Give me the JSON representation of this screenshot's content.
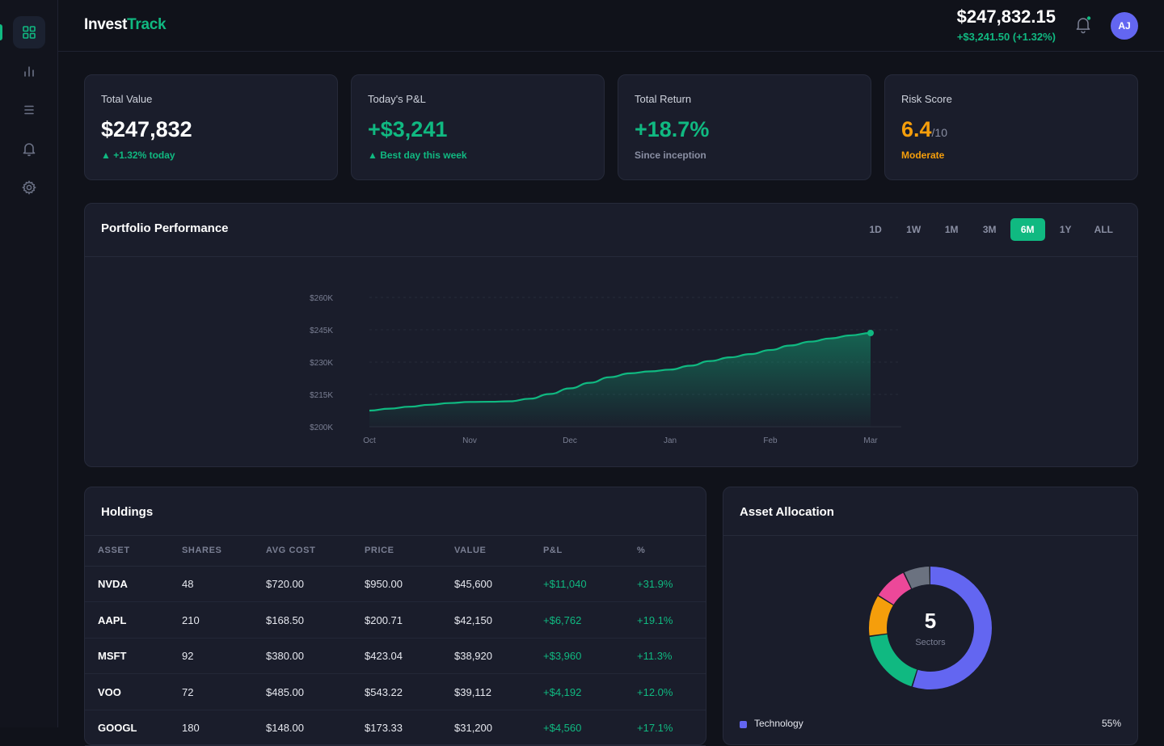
{
  "app": {
    "logo_part1": "Invest",
    "logo_part2": "Track",
    "avatar_initials": "AJ"
  },
  "header": {
    "total_value": "$247,832.15",
    "total_change": "+$3,241.50 (+1.32%)"
  },
  "sidebar": {
    "items": [
      {
        "icon": "grid-icon",
        "active": true
      },
      {
        "icon": "bar-chart-icon",
        "active": false
      },
      {
        "icon": "list-icon",
        "active": false
      },
      {
        "icon": "bell-icon",
        "active": false
      },
      {
        "icon": "gear-icon",
        "active": false
      }
    ]
  },
  "stats": [
    {
      "label": "Total Value",
      "value": "$247,832",
      "sub": "▲ +1.32% today"
    },
    {
      "label": "Today's P&L",
      "value": "+$3,241",
      "sub": "▲ Best day this week"
    },
    {
      "label": "Total Return",
      "value": "+18.7%",
      "sub": "Since inception"
    },
    {
      "label": "Risk Score",
      "value": "6.4",
      "value_suffix": "/10",
      "sub": "Moderate"
    }
  ],
  "performance": {
    "title": "Portfolio Performance",
    "ranges": [
      "1D",
      "1W",
      "1M",
      "3M",
      "6M",
      "1Y",
      "ALL"
    ],
    "active_range": "6M"
  },
  "chart_data": {
    "type": "area",
    "title": "",
    "xlabel": "",
    "ylabel": "",
    "x_ticks": [
      "Oct",
      "Nov",
      "Dec",
      "Jan",
      "Feb",
      "Mar"
    ],
    "y_ticks": [
      "$200K",
      "$215K",
      "$230K",
      "$245K",
      "$260K"
    ],
    "ylim": [
      200000,
      260000
    ],
    "grid": true,
    "color": "#10b981",
    "series": [
      {
        "x": [
          0,
          0.2,
          0.4,
          0.6,
          0.8,
          1.0,
          1.2,
          1.4,
          1.6,
          1.8,
          2.0,
          2.2,
          2.4,
          2.6,
          2.8,
          3.0,
          3.2,
          3.4,
          3.6,
          3.8,
          4.0,
          4.2,
          4.4,
          4.6,
          4.8,
          5.0
        ],
        "values": [
          207500,
          208400,
          209300,
          210200,
          211000,
          211500,
          211600,
          211800,
          213000,
          215200,
          217800,
          220400,
          223000,
          224800,
          225700,
          226500,
          228300,
          230500,
          232200,
          233700,
          235600,
          237700,
          239500,
          241000,
          242400,
          243500
        ]
      }
    ]
  },
  "holdings": {
    "title": "Holdings",
    "columns": [
      "ASSET",
      "SHARES",
      "AVG COST",
      "PRICE",
      "VALUE",
      "P&L",
      "%"
    ],
    "rows": [
      [
        "NVDA",
        "48",
        "$720.00",
        "$950.00",
        "$45,600",
        "+$11,040",
        "+31.9%"
      ],
      [
        "AAPL",
        "210",
        "$168.50",
        "$200.71",
        "$42,150",
        "+$6,762",
        "+19.1%"
      ],
      [
        "MSFT",
        "92",
        "$380.00",
        "$423.04",
        "$38,920",
        "+$3,960",
        "+11.3%"
      ],
      [
        "VOO",
        "72",
        "$485.00",
        "$543.22",
        "$39,112",
        "+$4,192",
        "+12.0%"
      ],
      [
        "GOOGL",
        "180",
        "$148.00",
        "$173.33",
        "$31,200",
        "+$4,560",
        "+17.1%"
      ]
    ]
  },
  "allocation": {
    "title": "Asset Allocation",
    "center_value": "5",
    "center_label": "Sectors",
    "slices": [
      {
        "name": "Technology",
        "percent": 55,
        "label": "55%",
        "color": "#6366f1"
      },
      {
        "name": "",
        "percent": 18,
        "color": "#10b981"
      },
      {
        "name": "",
        "percent": 11,
        "color": "#f59e0b"
      },
      {
        "name": "",
        "percent": 9,
        "color": "#ec4899"
      },
      {
        "name": "",
        "percent": 7,
        "color": "#6b7280"
      }
    ]
  }
}
